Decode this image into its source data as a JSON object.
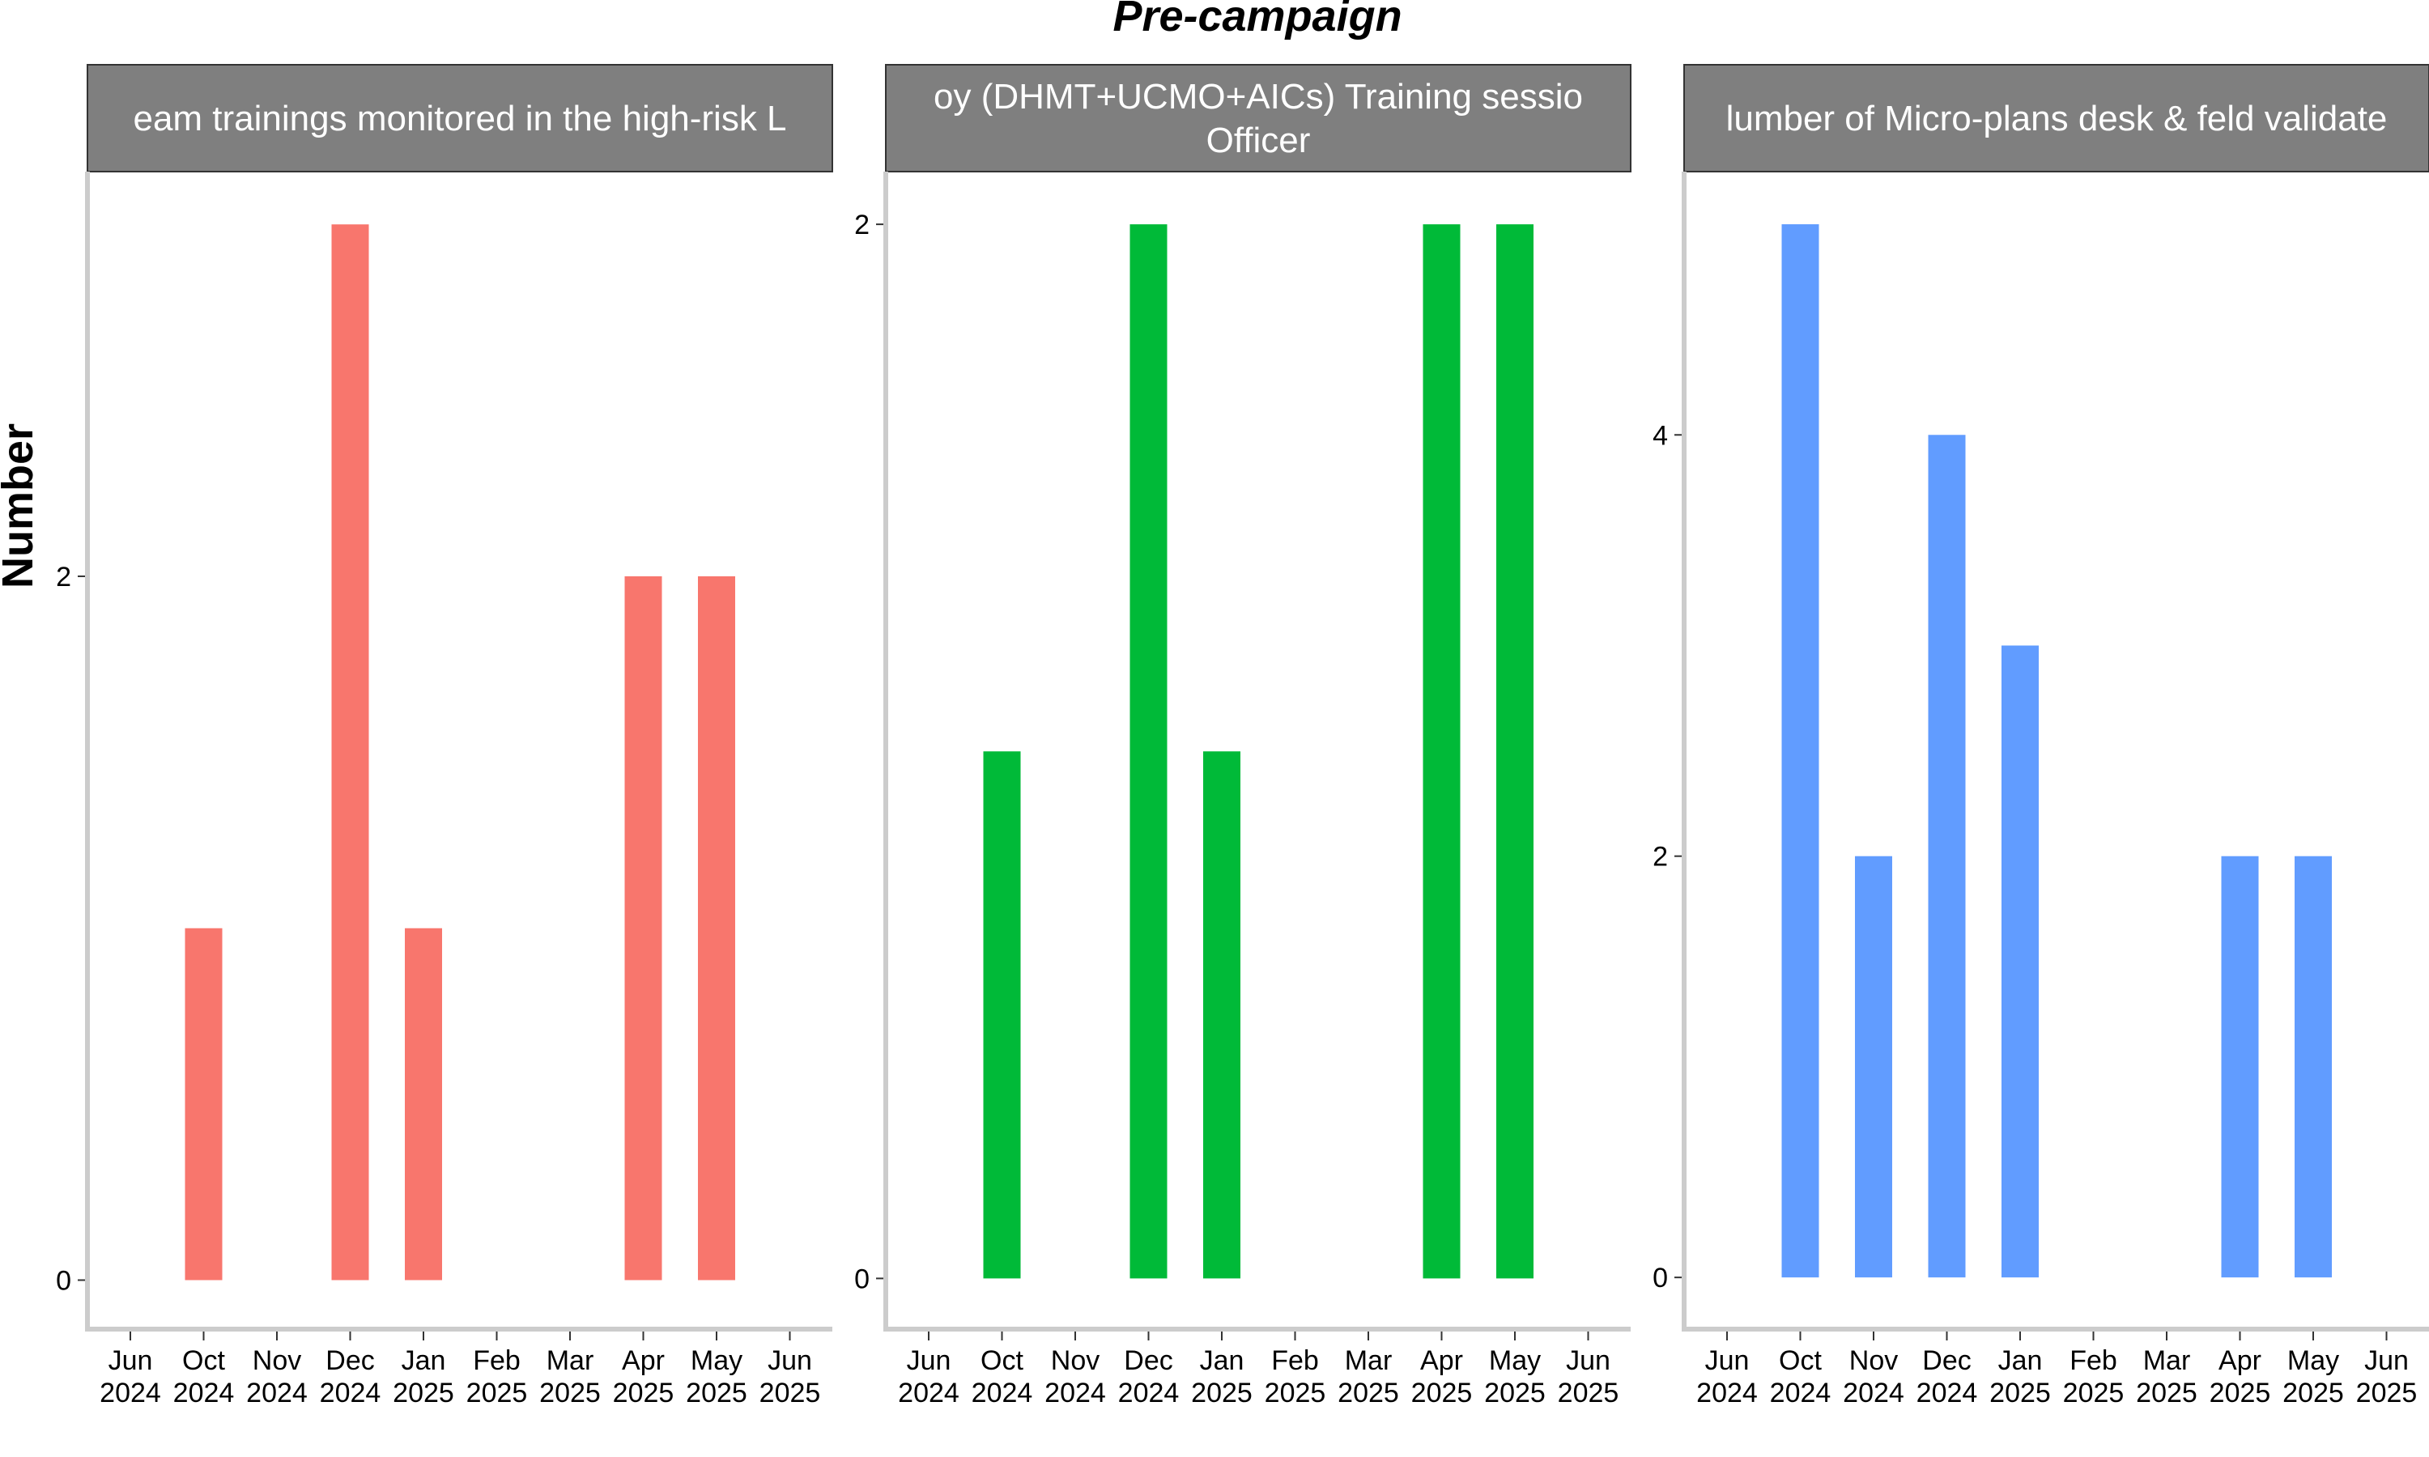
{
  "chart_data": {
    "type": "bar",
    "title": "Pre-campaign",
    "ylabel": "Number",
    "categories": [
      "Jun 2024",
      "Oct 2024",
      "Nov 2024",
      "Dec 2024",
      "Jan 2025",
      "Feb 2025",
      "Mar 2025",
      "Apr 2025",
      "May 2025",
      "Jun 2025"
    ],
    "x_tick_labels": [
      [
        "Jun",
        "2024"
      ],
      [
        "Oct",
        "2024"
      ],
      [
        "Nov",
        "2024"
      ],
      [
        "Dec",
        "2024"
      ],
      [
        "Jan",
        "2025"
      ],
      [
        "Feb",
        "2025"
      ],
      [
        "Mar",
        "2025"
      ],
      [
        "Apr",
        "2025"
      ],
      [
        "May",
        "2025"
      ],
      [
        "Jun",
        "2025"
      ]
    ],
    "grid": false,
    "legend": "none",
    "panels": [
      {
        "strip_lines": [
          "eam trainings monitored in the high-risk L"
        ],
        "color": "#F8766D",
        "ylim": [
          -0.13,
          3.15
        ],
        "yticks": [
          0,
          2
        ],
        "ytick_labels": [
          "0",
          "2"
        ],
        "values": [
          0,
          1,
          0,
          3,
          1,
          0,
          0,
          2,
          2,
          0
        ]
      },
      {
        "strip_lines": [
          "oy (DHMT+UCMO+AICs) Training sessio",
          "Officer"
        ],
        "color": "#00BA38",
        "ylim": [
          -0.09,
          2.1
        ],
        "yticks": [
          0,
          2
        ],
        "ytick_labels": [
          "0",
          "2"
        ],
        "values": [
          0,
          1,
          0,
          2,
          1,
          0,
          0,
          2,
          2,
          0
        ]
      },
      {
        "strip_lines": [
          "lumber of Micro-plans desk & feld validate"
        ],
        "color": "#619CFF",
        "ylim": [
          -0.23,
          5.25
        ],
        "yticks": [
          0,
          2,
          4
        ],
        "ytick_labels": [
          "0",
          "2",
          "4"
        ],
        "values": [
          0,
          5,
          2,
          4,
          3,
          0,
          0,
          2,
          2,
          0
        ]
      }
    ]
  }
}
